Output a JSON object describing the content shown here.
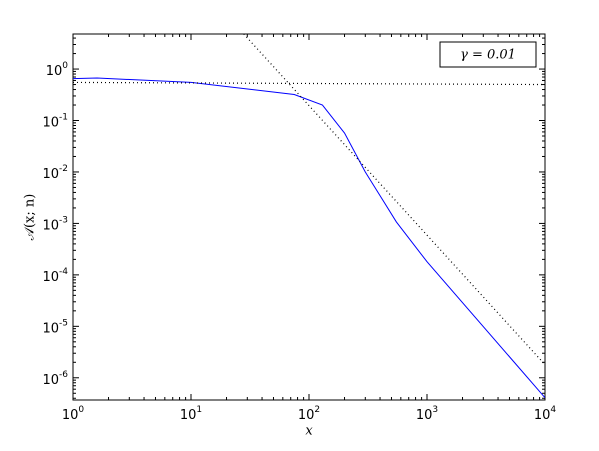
{
  "chart_data": {
    "type": "line",
    "x_label": "x",
    "y_label": "𝒜(x; n)",
    "xscale": "log",
    "yscale": "log",
    "xlim": [
      1,
      10000
    ],
    "ylim": [
      3.7e-07,
      4.8
    ],
    "xticks": [
      {
        "value": 1,
        "label": "10^0"
      },
      {
        "value": 10,
        "label": "10^1"
      },
      {
        "value": 100,
        "label": "10^2"
      },
      {
        "value": 1000,
        "label": "10^3"
      },
      {
        "value": 10000,
        "label": "10^4"
      }
    ],
    "yticks": [
      {
        "value": 1e-06,
        "label": "10^-6"
      },
      {
        "value": 1e-05,
        "label": "10^-5"
      },
      {
        "value": 0.0001,
        "label": "10^-4"
      },
      {
        "value": 0.001,
        "label": "10^-3"
      },
      {
        "value": 0.01,
        "label": "10^-2"
      },
      {
        "value": 0.1,
        "label": "10^-1"
      },
      {
        "value": 1,
        "label": "10^0"
      }
    ],
    "legend": "upper right",
    "series": [
      {
        "name": "γ = 0.01",
        "color": "#0000ff",
        "style": "solid",
        "x": [
          1,
          1.6,
          10,
          75,
          130,
          200,
          300,
          550,
          1000,
          10000
        ],
        "values": [
          0.65,
          0.67,
          0.55,
          0.32,
          0.2,
          0.057,
          0.01,
          0.00107,
          0.00018,
          4.1e-07
        ]
      },
      {
        "color": "#000000",
        "style": "dotted",
        "x": [
          1,
          10000
        ],
        "values": [
          0.55,
          0.5
        ]
      },
      {
        "color": "#000000",
        "style": "dotted",
        "x": [
          28,
          10000
        ],
        "values": [
          4.8,
          1.8e-06
        ]
      }
    ]
  }
}
